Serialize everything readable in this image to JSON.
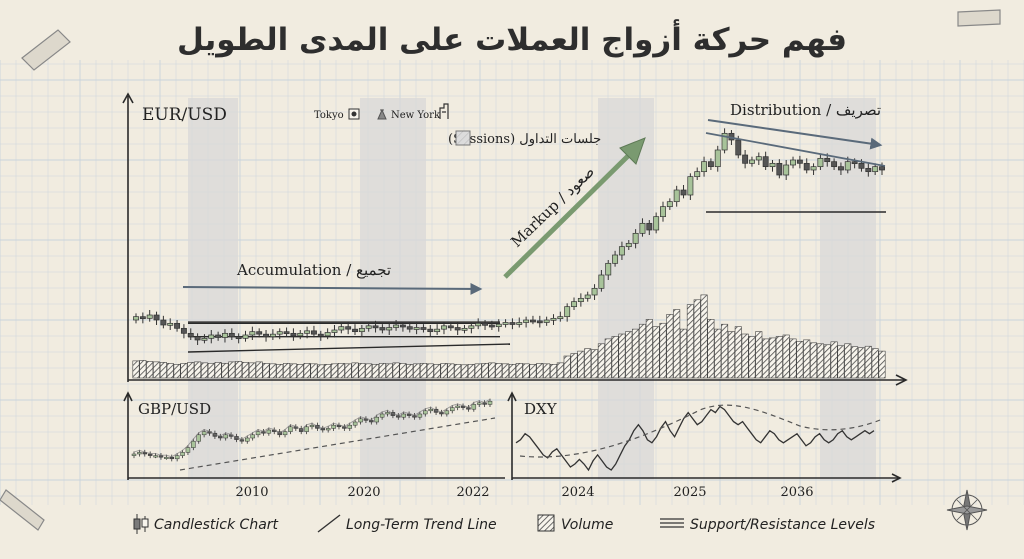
{
  "title": "فهم حركة أزواج العملات على المدى الطويل",
  "colors": {
    "background": "#f1ece0",
    "grid": "#c9d4dc",
    "bull": "#a8c39a",
    "bear": "#555555",
    "shade": "#d8d8d8",
    "ink": "#2a2a2a",
    "arrow": "#5a6a7a",
    "arrow_green": "#7a9a70"
  },
  "panels": {
    "main": {
      "label": "EUR/USD"
    },
    "gbp": {
      "label": "GBP/USD"
    },
    "dxy": {
      "label": "DXY"
    }
  },
  "sessions": {
    "tokyo": "Tokyo",
    "new_york": "New York",
    "label": "جلسات التداول (Sessions)"
  },
  "phases": {
    "accumulation": "Accumulation / تجميع",
    "markup": "Markup / صعود",
    "distribution": "Distribution / تصريف"
  },
  "x_ticks": [
    "2010",
    "2020",
    "2022",
    "2024",
    "2025",
    "2036"
  ],
  "legend": {
    "candlestick": "Candlestick Chart",
    "trend": "Long-Term Trend Line",
    "volume": "Volume",
    "levels": "Support/Resistance Levels"
  },
  "chart_data": [
    {
      "type": "candlestick",
      "series_name": "EUR/USD",
      "close": [
        300,
        298,
        302,
        296,
        290,
        292,
        286,
        280,
        276,
        272,
        274,
        278,
        275,
        280,
        276,
        274,
        278,
        282,
        279,
        276,
        279,
        282,
        280,
        277,
        280,
        283,
        279,
        277,
        281,
        284,
        288,
        285,
        282,
        286,
        289,
        287,
        284,
        287,
        290,
        288,
        285,
        287,
        285,
        282,
        285,
        289,
        287,
        284,
        286,
        289,
        292,
        290,
        288,
        291,
        293,
        291,
        293,
        296,
        295,
        293,
        296,
        298,
        300,
        312,
        318,
        322,
        326,
        334,
        350,
        364,
        374,
        384,
        388,
        400,
        412,
        404,
        420,
        432,
        438,
        452,
        446,
        468,
        474,
        486,
        480,
        500,
        520,
        512,
        494,
        484,
        488,
        492,
        480,
        484,
        470,
        482,
        488,
        484,
        476,
        480,
        490,
        486,
        480,
        476,
        486,
        484,
        478,
        474,
        480,
        476
      ],
      "volume": [
        35,
        36,
        34,
        33,
        32,
        30,
        28,
        30,
        32,
        33,
        31,
        30,
        32,
        30,
        33,
        34,
        32,
        31,
        33,
        30,
        29,
        28,
        30,
        29,
        28,
        30,
        29,
        27,
        28,
        29,
        30,
        29,
        31,
        30,
        29,
        28,
        30,
        29,
        31,
        30,
        28,
        29,
        30,
        29,
        28,
        30,
        29,
        28,
        27,
        28,
        29,
        30,
        31,
        30,
        29,
        28,
        30,
        29,
        28,
        30,
        29,
        28,
        31,
        45,
        50,
        55,
        60,
        58,
        70,
        80,
        85,
        90,
        95,
        100,
        110,
        120,
        105,
        112,
        130,
        140,
        100,
        150,
        160,
        170,
        120,
        100,
        110,
        95,
        105,
        90,
        85,
        95,
        80,
        82,
        85,
        88,
        80,
        75,
        78,
        72,
        70,
        68,
        74,
        66,
        70,
        64,
        62,
        65,
        60,
        55
      ],
      "support_resistance": [
        {
          "name": "accumulation-resistance",
          "y": 292
        },
        {
          "name": "accumulation-support",
          "y": 276
        },
        {
          "name": "distribution-support",
          "y": 480
        }
      ]
    },
    {
      "type": "candlestick",
      "series_name": "GBP/USD",
      "close": [
        10,
        11,
        10,
        9,
        9,
        8,
        8,
        7,
        9,
        11,
        14,
        18,
        22,
        24,
        23,
        21,
        20,
        22,
        21,
        19,
        18,
        20,
        22,
        24,
        23,
        25,
        24,
        22,
        24,
        27,
        26,
        24,
        27,
        28,
        26,
        25,
        26,
        28,
        27,
        26,
        28,
        30,
        32,
        31,
        30,
        33,
        35,
        36,
        34,
        33,
        35,
        34,
        33,
        35,
        37,
        38,
        36,
        35,
        37,
        39,
        40,
        39,
        38,
        41,
        42,
        41,
        43
      ]
    },
    {
      "type": "line",
      "series_name": "DXY",
      "values": [
        58,
        60,
        64,
        62,
        58,
        54,
        50,
        48,
        52,
        54,
        50,
        46,
        42,
        44,
        47,
        44,
        40,
        46,
        50,
        46,
        42,
        40,
        44,
        50,
        56,
        60,
        66,
        70,
        66,
        60,
        58,
        62,
        68,
        72,
        66,
        62,
        68,
        74,
        78,
        74,
        70,
        72,
        76,
        80,
        78,
        82,
        80,
        76,
        72,
        70,
        72,
        68,
        64,
        60,
        58,
        62,
        66,
        64,
        60,
        58,
        60,
        62,
        64,
        60,
        56,
        58,
        62,
        64,
        60,
        58,
        60,
        64,
        66,
        62,
        60,
        62,
        64,
        66,
        64,
        66
      ]
    }
  ]
}
